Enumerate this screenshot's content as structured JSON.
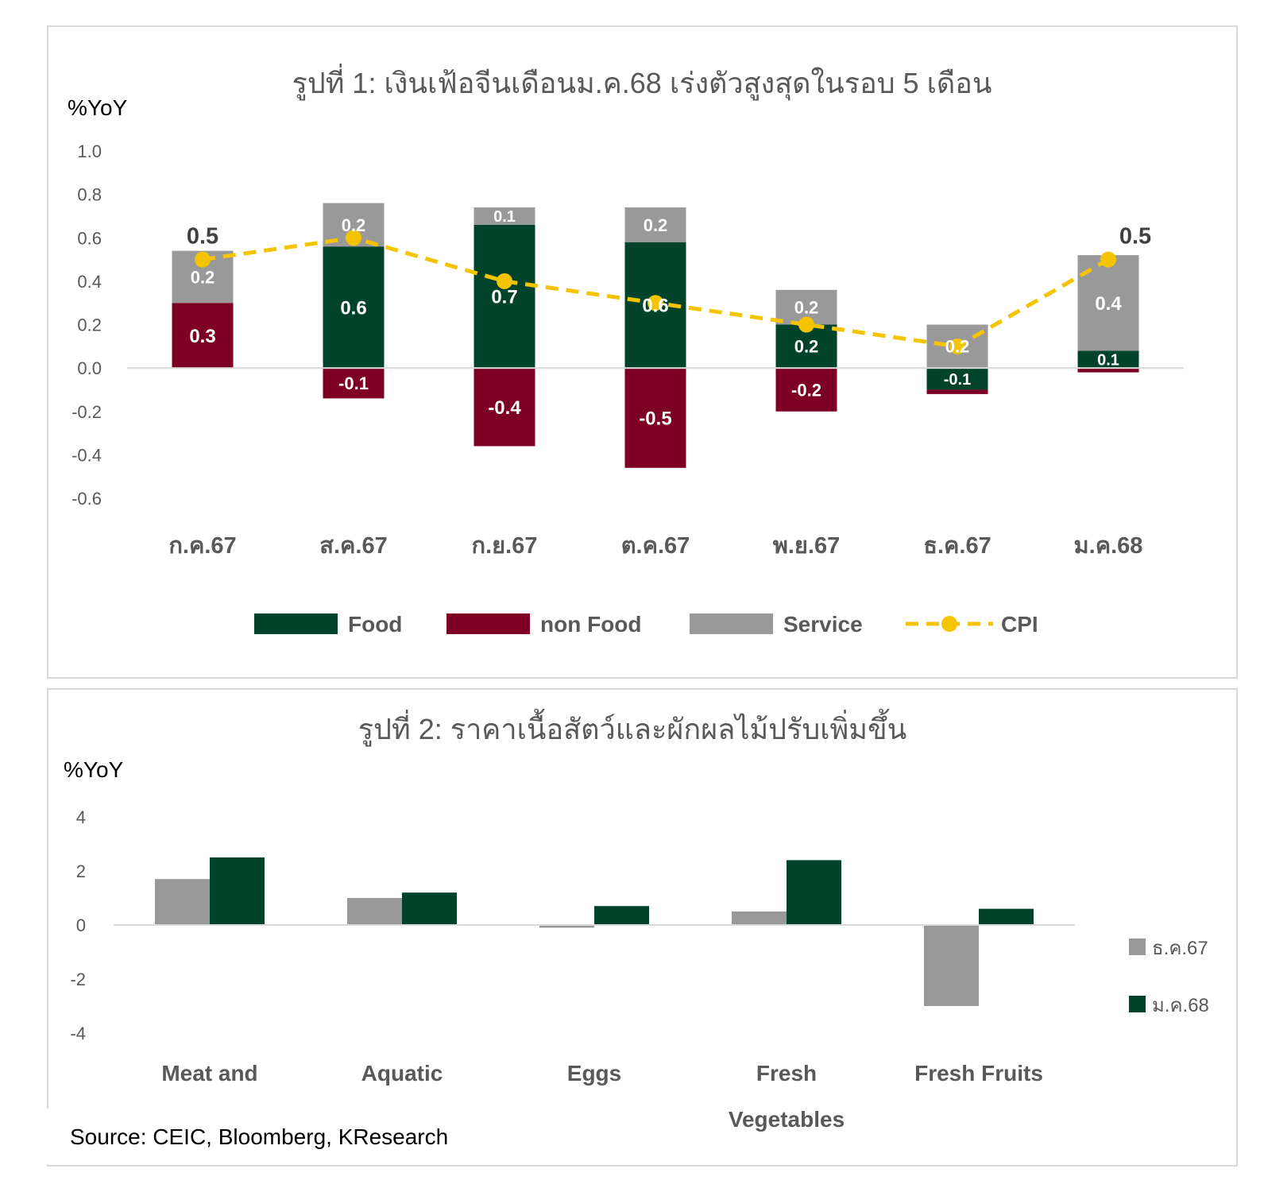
{
  "chart_data": [
    {
      "type": "bar",
      "stacked": true,
      "title": "รูปที่ 1: เงินเฟ้อจีนเดือนม.ค.68 เร่งตัวสูงสุดในรอบ 5 เดือน",
      "ylabel": "%YoY",
      "ylim": [
        -0.6,
        1.0
      ],
      "yticks": [
        "1.0",
        "0.8",
        "0.6",
        "0.4",
        "0.2",
        "0.0",
        "-0.2",
        "-0.4",
        "-0.6"
      ],
      "categories": [
        "ก.ค.67",
        "ส.ค.67",
        "ก.ย.67",
        "ต.ค.67",
        "พ.ย.67",
        "ธ.ค.67",
        "ม.ค.68"
      ],
      "legend_position": "bottom",
      "series": [
        {
          "name": "Food",
          "color": "#00432a",
          "values": [
            0.0,
            0.56,
            0.66,
            0.58,
            0.2,
            -0.1,
            0.08
          ],
          "labels": [
            "",
            "0.6",
            "0.7",
            "0.6",
            "0.2",
            "-0.1",
            "0.1"
          ]
        },
        {
          "name": "non Food",
          "color": "#7d0024",
          "values": [
            0.3,
            -0.14,
            -0.36,
            -0.46,
            -0.2,
            -0.02,
            -0.02
          ],
          "labels": [
            "0.3",
            "-0.1",
            "-0.4",
            "-0.5",
            "-0.2",
            "",
            ""
          ]
        },
        {
          "name": "Service",
          "color": "#999999",
          "values": [
            0.24,
            0.2,
            0.08,
            0.16,
            0.16,
            0.2,
            0.44
          ],
          "labels": [
            "0.2",
            "0.2",
            "0.1",
            "0.2",
            "0.2",
            "0.2",
            "0.4"
          ]
        },
        {
          "name": "CPI",
          "type": "line",
          "style": "dashed",
          "color": "#f5c400",
          "values": [
            0.5,
            0.6,
            0.4,
            0.3,
            0.2,
            0.1,
            0.5
          ],
          "labels": [
            "0.5",
            "",
            "",
            "",
            "",
            "",
            "0.5"
          ]
        }
      ]
    },
    {
      "type": "bar",
      "title": "รูปที่ 2: ราคาเนื้อสัตว์และผักผลไม้ปรับเพิ่มขึ้น",
      "ylabel": "%YoY",
      "ylim": [
        -4,
        4
      ],
      "yticks": [
        "4",
        "2",
        "0",
        "-2",
        "-4"
      ],
      "categories": [
        [
          "Meat and"
        ],
        [
          "Aquatic"
        ],
        [
          "Eggs"
        ],
        [
          "Fresh",
          "Vegetables"
        ],
        [
          "Fresh Fruits"
        ]
      ],
      "legend_position": "right",
      "series": [
        {
          "name": "ธ.ค.67",
          "color": "#999999",
          "values": [
            1.7,
            1.0,
            -0.1,
            0.5,
            -3.0
          ]
        },
        {
          "name": "ม.ค.68",
          "color": "#00432a",
          "values": [
            2.5,
            1.2,
            0.7,
            2.4,
            0.6
          ]
        }
      ]
    }
  ],
  "source": "Source: CEIC, Bloomberg, KResearch"
}
